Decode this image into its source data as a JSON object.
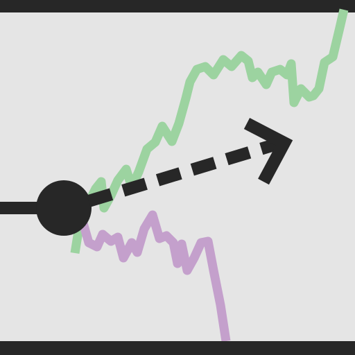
{
  "icon": "diverging-price-lines-with-forward-arrow",
  "colors": {
    "background": "#e5e5e5",
    "bars": "#272727",
    "green_line": "#9cd3a0",
    "purple_line": "#c4a0cc",
    "marker": "#272727",
    "arrow": "#272727"
  }
}
